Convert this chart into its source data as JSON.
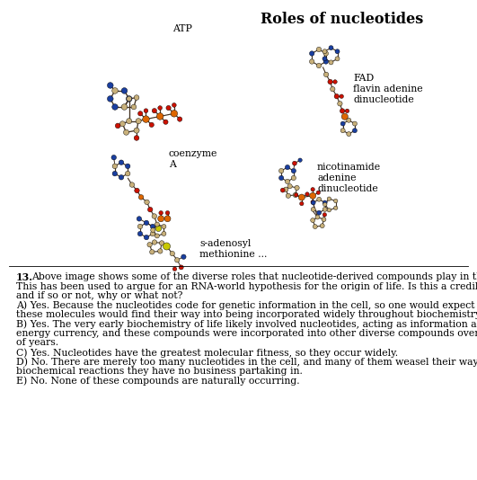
{
  "title": "Roles of nucleotides",
  "title_fontsize": 11.5,
  "title_bold": true,
  "background_color": "#ffffff",
  "question_number": "13.",
  "q_line1": "  Above image shows some of the diverse roles that nucleotide-derived compounds play in the cell.",
  "q_line2": "This has been used to argue for an RNA-world hypothesis for the origin of life. Is this a credible claim,",
  "q_line3": "and if so or not, why or what not?",
  "answer_A_line1": "A) Yes. Because the nucleotides code for genetic information in the cell, so one would expect that",
  "answer_A_line2": "these molecules would find their way into being incorporated widely throughout biochemistry of life",
  "answer_B_line1": "B) Yes. The very early biochemistry of life likely involved nucleotides, acting as information and",
  "answer_B_line2": "energy currency, and these compounds were incorporated into other diverse compounds over millions",
  "answer_B_line3": "of years.",
  "answer_C": "C) Yes. Nucleotides have the greatest molecular fitness, so they occur widely.",
  "answer_D_line1": "D) No. There are merely too many nucleotides in the cell, and many of them weasel their way into",
  "answer_D_line2": "biochemical reactions they have no business partaking in.",
  "answer_E": "E) No. None of these compounds are naturally occurring.",
  "label_ATP": "ATP",
  "label_FAD_1": "FAD",
  "label_FAD_2": "flavin adenine",
  "label_FAD_3": "dinucleotide",
  "label_coa_1": "coenzyme",
  "label_coa_2": "A",
  "label_nad_1": "nicotinamide",
  "label_nad_2": "adenine",
  "label_nad_3": "dinucleotide",
  "label_sam_1": "s-adenosyl",
  "label_sam_2": "methionine ...",
  "text_fontsize": 7.8,
  "label_fontsize": 7.8,
  "figsize": [
    5.31,
    5.34
  ],
  "dpi": 100,
  "blue": "#1a3fa0",
  "red": "#cc1100",
  "orange": "#dd6600",
  "tan": "#c8b07a",
  "yellow": "#c8c800",
  "dark": "#443322"
}
